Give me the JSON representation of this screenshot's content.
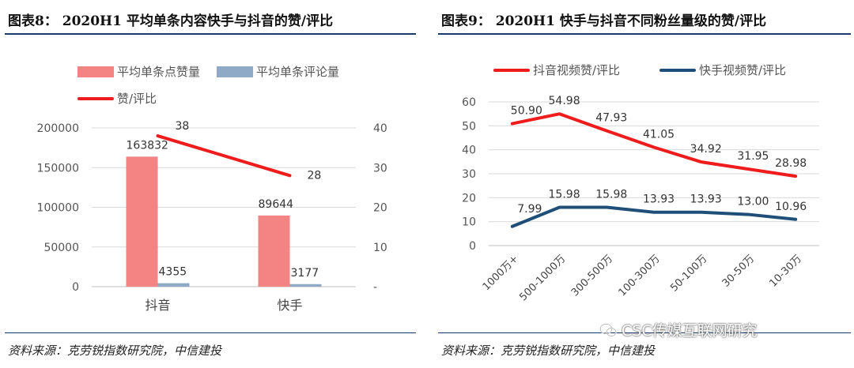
{
  "figures": [
    {
      "title": "图表8：  2020H1 平均单条内容快手与抖音的赞/评比",
      "source": "资料来源：克劳锐指数研究院，中信建投"
    },
    {
      "title": "图表9：  2020H1 快手与抖音不同粉丝量级的赞/评比",
      "source": "资料来源：克劳锐指数研究院，中信建投"
    }
  ],
  "watermark": {
    "text": "CSC传媒互联网研究",
    "icon": "wechat-icon"
  },
  "chart_data": [
    {
      "type": "bar",
      "categories": [
        "抖音",
        "快手"
      ],
      "series": [
        {
          "name": "平均单条点赞量",
          "type": "bar",
          "axis": "left",
          "color": "#f48383",
          "values": [
            163832,
            89644
          ],
          "labels": [
            "163832",
            "89644"
          ]
        },
        {
          "name": "平均单条评论量",
          "type": "bar",
          "axis": "left",
          "color": "#8eaac6",
          "values": [
            4355,
            3177
          ],
          "labels": [
            "4355",
            "3177"
          ]
        },
        {
          "name": "赞/评比",
          "type": "line",
          "axis": "right",
          "color": "#ee1c1c",
          "values": [
            38,
            28
          ],
          "labels": [
            "38",
            "28"
          ]
        }
      ],
      "ylim": [
        0,
        200000
      ],
      "yticks": [
        "0",
        "50000",
        "100000",
        "150000",
        "200000"
      ],
      "y2lim": [
        0,
        40
      ],
      "y2ticks": [
        "-",
        "10",
        "20",
        "30",
        "40"
      ],
      "grid": true,
      "legend": "top"
    },
    {
      "type": "line",
      "categories": [
        "1000万+",
        "500-1000万",
        "300-500万",
        "100-300万",
        "50-100万",
        "30-50万",
        "10-30万"
      ],
      "series": [
        {
          "name": "抖音视频赞/评比",
          "color": "#ee1c1c",
          "values": [
            50.9,
            54.98,
            47.93,
            41.05,
            34.92,
            31.95,
            28.98
          ],
          "labels": [
            "50.90",
            "54.98",
            "47.93",
            "41.05",
            "34.92",
            "31.95",
            "28.98"
          ]
        },
        {
          "name": "快手视频赞/评比",
          "color": "#1f4e79",
          "values": [
            7.99,
            15.98,
            15.98,
            13.93,
            13.93,
            13.0,
            10.96
          ],
          "labels": [
            "7.99",
            "15.98",
            "15.98",
            "13.93",
            "13.93",
            "13.00",
            "10.96"
          ]
        }
      ],
      "ylim": [
        0,
        60
      ],
      "yticks": [
        "0",
        "10",
        "20",
        "30",
        "40",
        "50",
        "60"
      ],
      "grid": true,
      "legend": "top"
    }
  ]
}
